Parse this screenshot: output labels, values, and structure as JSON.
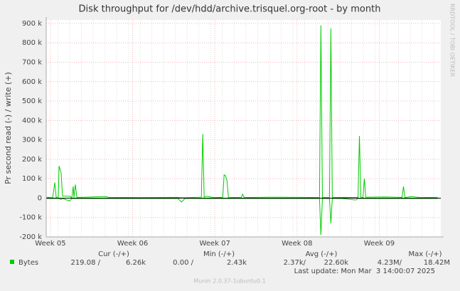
{
  "chart_data": {
    "type": "line",
    "title": "Disk throughput for /dev/hdd/archive.trisquel.org-root - by month",
    "y_label": "Pr second read (-) / write (+)",
    "side_text": "RRDTOOL / TOBI OETIKER",
    "xlim": [
      0,
      33.6
    ],
    "xticks": [
      {
        "value": 0.36,
        "label": "Week 05"
      },
      {
        "value": 7.36,
        "label": "Week 06"
      },
      {
        "value": 14.36,
        "label": "Week 07"
      },
      {
        "value": 21.36,
        "label": "Week 08"
      },
      {
        "value": 28.36,
        "label": "Week 09"
      }
    ],
    "ylim": [
      -200000,
      918000
    ],
    "yticks": [
      {
        "value": -200000,
        "label": "-200 k"
      },
      {
        "value": -100000,
        "label": "-100 k"
      },
      0,
      {
        "value": 100000,
        "label": "100 k"
      },
      {
        "value": 200000,
        "label": "200 k"
      },
      {
        "value": 300000,
        "label": "300 k"
      },
      {
        "value": 400000,
        "label": "400 k"
      },
      {
        "value": 500000,
        "label": "500 k"
      },
      {
        "value": 600000,
        "label": "600 k"
      },
      {
        "value": 700000,
        "label": "700 k"
      },
      {
        "value": 800000,
        "label": "800 k"
      },
      {
        "value": 900000,
        "label": "900 k"
      }
    ],
    "grid": true,
    "x": [
      0.06,
      0.3,
      0.55,
      0.73,
      0.85,
      1.03,
      1.09,
      1.27,
      1.39,
      2.0,
      2.18,
      2.3,
      2.36,
      2.48,
      2.61,
      3.33,
      5.15,
      5.27,
      8.18,
      11.21,
      11.52,
      11.82,
      13.21,
      13.33,
      13.45,
      13.64,
      14.24,
      15.03,
      15.15,
      15.27,
      15.39,
      15.52,
      16.61,
      16.73,
      16.85,
      19.09,
      21.52,
      23.27,
      23.39,
      23.52,
      24.12,
      24.24,
      24.36,
      25.15,
      26.36,
      26.55,
      26.67,
      26.79,
      26.97,
      27.09,
      27.21,
      28.79,
      30.3,
      30.42,
      30.55,
      31.09,
      31.82,
      33.33
    ],
    "series": [
      {
        "name": "Bytes",
        "color": "#00cc00",
        "values": [
          5000,
          3000,
          2000,
          80000,
          4000,
          5000,
          165000,
          130000,
          10000,
          10000,
          2000,
          60000,
          3000,
          70000,
          4000,
          5000,
          8000,
          4000,
          3000,
          4000,
          2000,
          2000,
          5000,
          330000,
          5000,
          10000,
          3000,
          4000,
          120000,
          115000,
          90000,
          3000,
          4000,
          20000,
          3000,
          5000,
          4000,
          3000,
          890000,
          3000,
          3000,
          875000,
          3000,
          4000,
          3000,
          3000,
          320000,
          5000,
          3000,
          100000,
          5000,
          6000,
          4000,
          60000,
          3000,
          8000,
          3000,
          4000
        ],
        "read_values": [
          -2000,
          -2000,
          -2000,
          -2000,
          -2000,
          -2000,
          -2000,
          -8000,
          -2000,
          -15000,
          -2000,
          -2000,
          -2000,
          -2000,
          -2000,
          -2000,
          -2000,
          -2000,
          -2000,
          -2000,
          -20000,
          -2000,
          -2000,
          -2000,
          -2000,
          -2000,
          -2000,
          -2000,
          -2000,
          -2000,
          -2000,
          -2000,
          -2000,
          -2000,
          -2000,
          -2000,
          -2000,
          -2000,
          -190000,
          -2000,
          -2000,
          -130000,
          -2000,
          -2000,
          -10000,
          -2000,
          -2000,
          -2000,
          -2000,
          -2000,
          -2000,
          -2000,
          -2000,
          -2000,
          -2000,
          -2000,
          -2000,
          -2000
        ]
      }
    ],
    "legend_table": {
      "headers": [
        "Cur (-/+)",
        "Min (-/+)",
        "Avg (-/+)",
        "Max (-/+)"
      ],
      "values": [
        "219.08 /",
        "6.26k",
        "0.00 /",
        "2.43k",
        "2.37k/",
        "22.60k",
        "4.23M/",
        "18.42M"
      ]
    },
    "last_update": "Last update: Mon Mar  3 14:00:07 2025",
    "footer": "Munin 2.0.37-1ubuntu0.1"
  }
}
